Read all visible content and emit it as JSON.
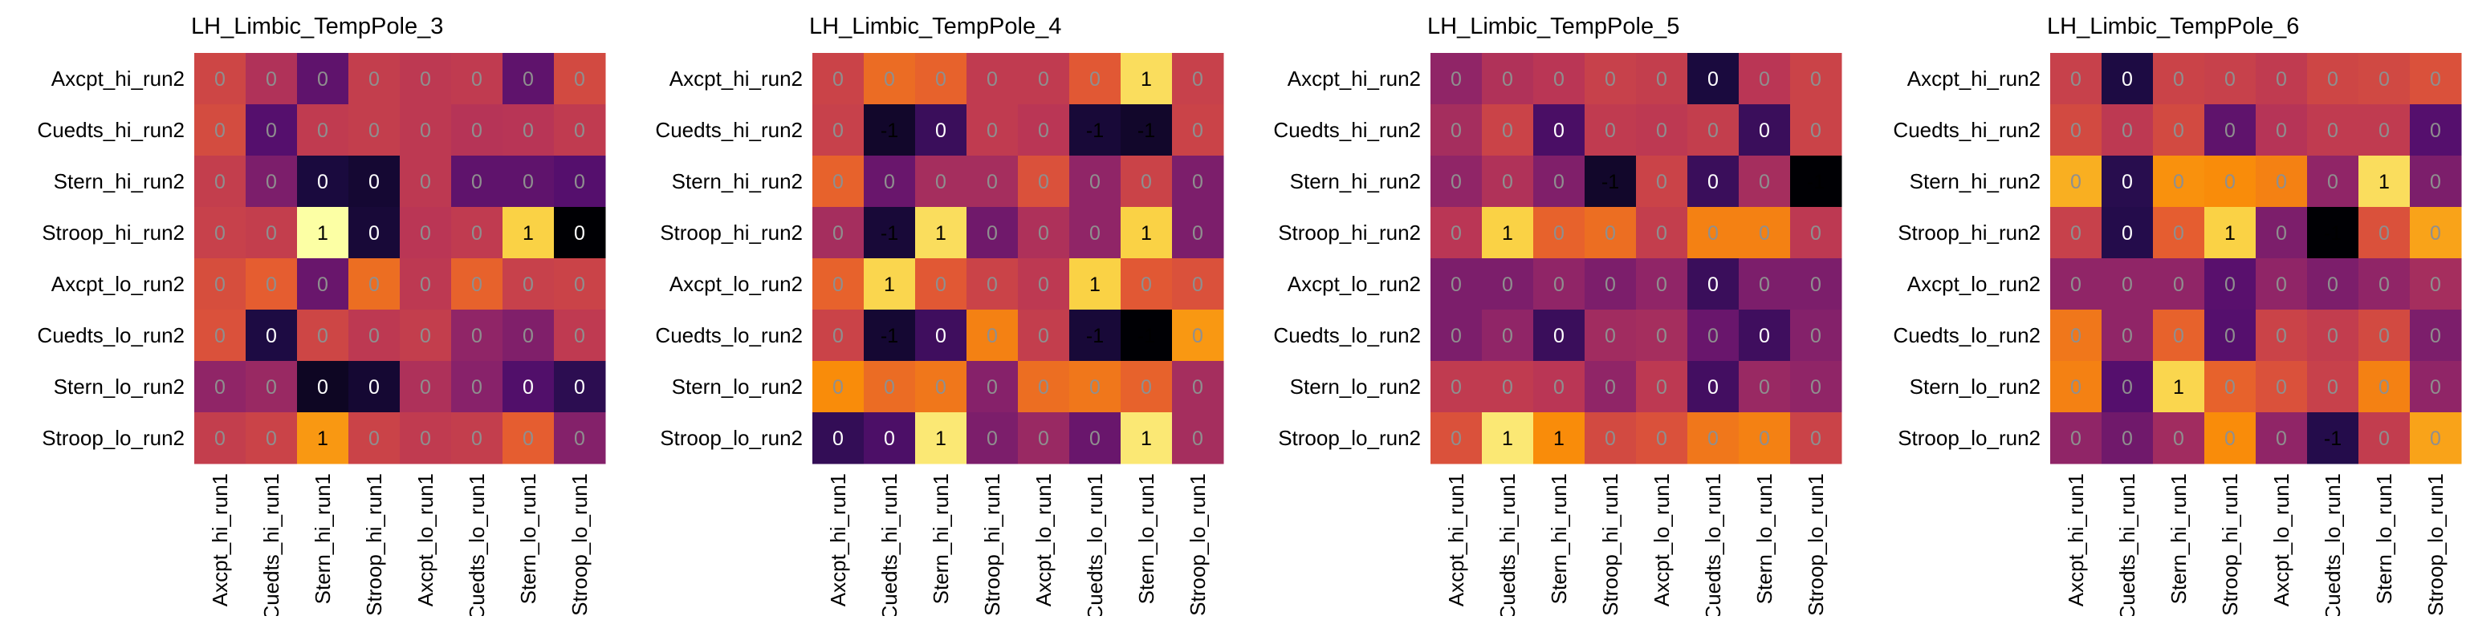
{
  "chart_data": [
    {
      "type": "heatmap",
      "title": "LH_Limbic_TempPole_3",
      "xlabel": "",
      "ylabel": "",
      "x_categories": [
        "Axcpt_hi_run1",
        "Cuedts_hi_run1",
        "Stern_hi_run1",
        "Stroop_hi_run1",
        "Axcpt_lo_run1",
        "Cuedts_lo_run1",
        "Stern_lo_run1",
        "Stroop_lo_run1"
      ],
      "y_categories": [
        "Axcpt_hi_run2",
        "Cuedts_hi_run2",
        "Stern_hi_run2",
        "Stroop_hi_run2",
        "Axcpt_lo_run2",
        "Cuedts_lo_run2",
        "Stern_lo_run2",
        "Stroop_lo_run2"
      ],
      "values": [
        [
          0.12,
          -0.05,
          -0.45,
          0.06,
          0.02,
          0.04,
          -0.45,
          0.15
        ],
        [
          0.16,
          -0.5,
          0.04,
          0.06,
          0.02,
          -0.02,
          -0.01,
          0.04
        ],
        [
          0.06,
          -0.3,
          -0.78,
          -0.82,
          0.02,
          -0.45,
          -0.45,
          -0.5
        ],
        [
          0.08,
          0.06,
          1.0,
          -0.8,
          0.0,
          0.04,
          0.8,
          -1.0
        ],
        [
          0.18,
          0.28,
          -0.4,
          0.36,
          0.02,
          0.3,
          0.08,
          0.1
        ],
        [
          0.2,
          -0.76,
          0.12,
          0.02,
          0.06,
          -0.2,
          -0.28,
          0.03
        ],
        [
          -0.2,
          -0.16,
          -0.88,
          -0.82,
          -0.06,
          -0.24,
          -0.52,
          -0.68
        ],
        [
          0.06,
          0.1,
          0.55,
          0.1,
          0.04,
          0.06,
          0.28,
          -0.26
        ]
      ],
      "labels": [
        [
          "0",
          "0",
          "0",
          "0",
          "0",
          "0",
          "0",
          "0"
        ],
        [
          "0",
          "0",
          "0",
          "0",
          "0",
          "0",
          "0",
          "0"
        ],
        [
          "0",
          "0",
          "0",
          "0",
          "0",
          "0",
          "0",
          "0"
        ],
        [
          "0",
          "0",
          "1",
          "0",
          "0",
          "0",
          "1",
          "0"
        ],
        [
          "0",
          "0",
          "0",
          "0",
          "0",
          "0",
          "0",
          "0"
        ],
        [
          "0",
          "0",
          "0",
          "0",
          "0",
          "0",
          "0",
          "0"
        ],
        [
          "0",
          "0",
          "0",
          "0",
          "0",
          "0",
          "0",
          "0"
        ],
        [
          "0",
          "0",
          "1",
          "0",
          "0",
          "0",
          "0",
          "0"
        ]
      ]
    },
    {
      "type": "heatmap",
      "title": "LH_Limbic_TempPole_4",
      "xlabel": "",
      "ylabel": "",
      "x_categories": [
        "Axcpt_hi_run1",
        "Cuedts_hi_run1",
        "Stern_hi_run1",
        "Stroop_hi_run1",
        "Axcpt_lo_run1",
        "Cuedts_lo_run1",
        "Stern_lo_run1",
        "Stroop_lo_run1"
      ],
      "y_categories": [
        "Axcpt_hi_run2",
        "Cuedts_hi_run2",
        "Stern_hi_run2",
        "Stroop_hi_run2",
        "Axcpt_lo_run2",
        "Cuedts_lo_run2",
        "Stern_lo_run2",
        "Stroop_lo_run2"
      ],
      "values": [
        [
          0.1,
          0.35,
          0.3,
          0.04,
          0.04,
          0.25,
          0.85,
          0.08
        ],
        [
          0.08,
          -0.85,
          -0.62,
          0.04,
          0.0,
          -0.8,
          -0.85,
          0.1
        ],
        [
          0.3,
          -0.4,
          -0.1,
          -0.1,
          0.2,
          -0.2,
          0.1,
          -0.3
        ],
        [
          -0.1,
          -0.8,
          0.85,
          -0.36,
          -0.06,
          -0.2,
          0.8,
          -0.3
        ],
        [
          0.3,
          0.82,
          0.25,
          0.1,
          0.02,
          0.8,
          0.25,
          0.2
        ],
        [
          0.1,
          -0.82,
          -0.6,
          0.45,
          0.06,
          -0.8,
          -1.0,
          0.55
        ],
        [
          0.5,
          0.35,
          0.4,
          -0.25,
          0.36,
          0.4,
          0.3,
          -0.1
        ],
        [
          -0.65,
          -0.54,
          0.9,
          -0.3,
          -0.16,
          -0.4,
          0.9,
          -0.1
        ]
      ],
      "labels": [
        [
          "0",
          "0",
          "0",
          "0",
          "0",
          "0",
          "1",
          "0"
        ],
        [
          "0",
          "-1",
          "0",
          "0",
          "0",
          "-1",
          "-1",
          "0"
        ],
        [
          "0",
          "0",
          "0",
          "0",
          "0",
          "0",
          "0",
          "0"
        ],
        [
          "0",
          "-1",
          "1",
          "0",
          "0",
          "0",
          "1",
          "0"
        ],
        [
          "0",
          "1",
          "0",
          "0",
          "0",
          "1",
          "0",
          "0"
        ],
        [
          "0",
          "-1",
          "0",
          "0",
          "0",
          "-1",
          "-1",
          "0"
        ],
        [
          "0",
          "0",
          "0",
          "0",
          "0",
          "0",
          "0",
          "0"
        ],
        [
          "0",
          "0",
          "1",
          "0",
          "0",
          "0",
          "1",
          "0"
        ]
      ]
    },
    {
      "type": "heatmap",
      "title": "LH_Limbic_TempPole_5",
      "xlabel": "",
      "ylabel": "",
      "x_categories": [
        "Axcpt_hi_run1",
        "Cuedts_hi_run1",
        "Stern_hi_run1",
        "Stroop_hi_run1",
        "Axcpt_lo_run1",
        "Cuedts_lo_run1",
        "Stern_lo_run1",
        "Stroop_lo_run1"
      ],
      "y_categories": [
        "Axcpt_hi_run2",
        "Cuedts_hi_run2",
        "Stern_hi_run2",
        "Stroop_hi_run2",
        "Axcpt_lo_run2",
        "Cuedts_lo_run2",
        "Stern_lo_run2",
        "Stroop_lo_run2"
      ],
      "values": [
        [
          -0.2,
          -0.05,
          0.0,
          0.08,
          0.06,
          -0.78,
          0.0,
          0.1
        ],
        [
          -0.1,
          0.1,
          -0.55,
          0.04,
          0.02,
          0.06,
          -0.62,
          0.1
        ],
        [
          -0.2,
          -0.05,
          -0.28,
          -0.85,
          0.1,
          -0.62,
          -0.1,
          -1.0
        ],
        [
          0.0,
          0.8,
          0.3,
          0.36,
          0.06,
          0.45,
          0.45,
          0.02
        ],
        [
          -0.3,
          -0.3,
          -0.2,
          -0.3,
          -0.2,
          -0.62,
          -0.3,
          -0.3
        ],
        [
          -0.3,
          -0.2,
          -0.62,
          -0.12,
          -0.1,
          -0.4,
          -0.6,
          -0.26
        ],
        [
          0.04,
          0.04,
          0.0,
          -0.2,
          0.02,
          -0.58,
          -0.16,
          -0.2
        ],
        [
          0.2,
          0.9,
          0.5,
          0.15,
          0.2,
          0.4,
          0.45,
          0.1
        ]
      ],
      "labels": [
        [
          "0",
          "0",
          "0",
          "0",
          "0",
          "0",
          "0",
          "0"
        ],
        [
          "0",
          "0",
          "0",
          "0",
          "0",
          "0",
          "0",
          "0"
        ],
        [
          "0",
          "0",
          "0",
          "-1",
          "0",
          "0",
          "0",
          "-1"
        ],
        [
          "0",
          "1",
          "0",
          "0",
          "0",
          "0",
          "0",
          "0"
        ],
        [
          "0",
          "0",
          "0",
          "0",
          "0",
          "0",
          "0",
          "0"
        ],
        [
          "0",
          "0",
          "0",
          "0",
          "0",
          "0",
          "0",
          "0"
        ],
        [
          "0",
          "0",
          "0",
          "0",
          "0",
          "0",
          "0",
          "0"
        ],
        [
          "0",
          "1",
          "1",
          "0",
          "0",
          "0",
          "0",
          "0"
        ]
      ]
    },
    {
      "type": "heatmap",
      "title": "LH_Limbic_TempPole_6",
      "xlabel": "",
      "ylabel": "",
      "x_categories": [
        "Axcpt_hi_run1",
        "Cuedts_hi_run1",
        "Stern_hi_run1",
        "Stroop_hi_run1",
        "Axcpt_lo_run1",
        "Cuedts_lo_run1",
        "Stern_lo_run1",
        "Stroop_lo_run1"
      ],
      "y_categories": [
        "Axcpt_hi_run2",
        "Cuedts_hi_run2",
        "Stern_hi_run2",
        "Stroop_hi_run2",
        "Axcpt_lo_run2",
        "Cuedts_lo_run2",
        "Stern_lo_run2",
        "Stroop_lo_run2"
      ],
      "values": [
        [
          0.08,
          -0.76,
          0.1,
          0.08,
          0.04,
          0.12,
          0.14,
          0.2
        ],
        [
          0.15,
          0.02,
          0.15,
          -0.45,
          -0.02,
          0.04,
          0.04,
          -0.5
        ],
        [
          0.65,
          -0.7,
          0.52,
          0.5,
          0.45,
          -0.2,
          0.85,
          -0.3
        ],
        [
          0.08,
          -0.72,
          0.28,
          0.8,
          -0.3,
          -1.0,
          0.2,
          0.6
        ],
        [
          -0.2,
          -0.2,
          -0.2,
          -0.48,
          -0.2,
          -0.3,
          -0.2,
          -0.1
        ],
        [
          0.4,
          -0.2,
          0.3,
          -0.5,
          0.1,
          0.05,
          0.15,
          -0.3
        ],
        [
          0.45,
          -0.5,
          0.82,
          0.3,
          0.2,
          0.08,
          0.45,
          -0.2
        ],
        [
          -0.2,
          -0.36,
          -0.12,
          0.5,
          -0.2,
          -0.72,
          0.05,
          0.6
        ]
      ],
      "labels": [
        [
          "0",
          "0",
          "0",
          "0",
          "0",
          "0",
          "0",
          "0"
        ],
        [
          "0",
          "0",
          "0",
          "0",
          "0",
          "0",
          "0",
          "0"
        ],
        [
          "0",
          "0",
          "0",
          "0",
          "0",
          "0",
          "1",
          "0"
        ],
        [
          "0",
          "0",
          "0",
          "1",
          "0",
          "-1",
          "0",
          "0"
        ],
        [
          "0",
          "0",
          "0",
          "0",
          "0",
          "0",
          "0",
          "0"
        ],
        [
          "0",
          "0",
          "0",
          "0",
          "0",
          "0",
          "0",
          "0"
        ],
        [
          "0",
          "0",
          "1",
          "0",
          "0",
          "0",
          "0",
          "0"
        ],
        [
          "0",
          "0",
          "0",
          "0",
          "0",
          "-1",
          "0",
          "0"
        ]
      ]
    }
  ]
}
